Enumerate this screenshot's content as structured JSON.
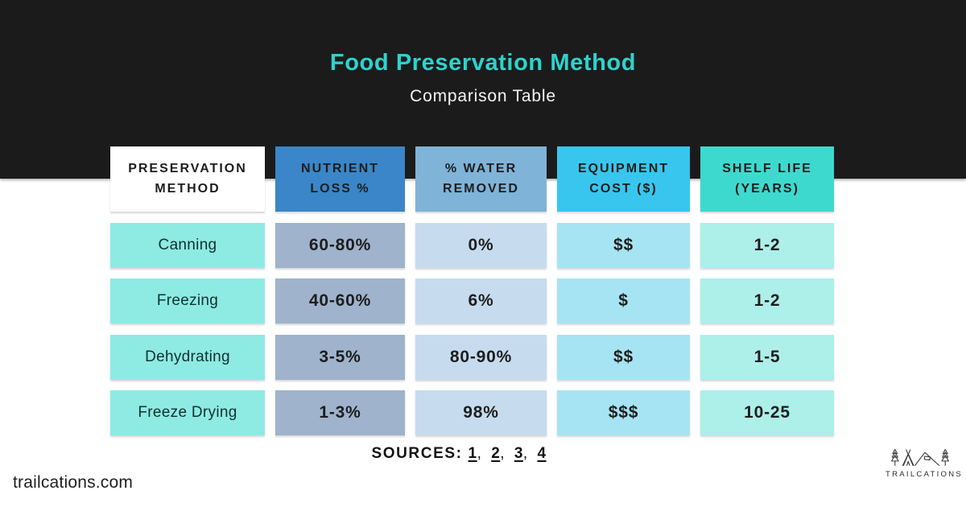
{
  "header": {
    "title": "Food Preservation Method",
    "subtitle": "Comparison Table"
  },
  "table": {
    "columns": [
      {
        "id": "method",
        "label": "PRESERVATION\nMETHOD"
      },
      {
        "id": "nutrient_loss",
        "label": "NUTRIENT\nLOSS %"
      },
      {
        "id": "water_removed",
        "label": "% WATER\nREMOVED"
      },
      {
        "id": "equipment_cost",
        "label": "EQUIPMENT\nCOST ($)"
      },
      {
        "id": "shelf_life",
        "label": "SHELF LIFE\n(YEARS)"
      }
    ],
    "rows": [
      {
        "method": "Canning",
        "nutrient_loss": "60-80%",
        "water_removed": "0%",
        "equipment_cost": "$$",
        "shelf_life": "1-2"
      },
      {
        "method": "Freezing",
        "nutrient_loss": "40-60%",
        "water_removed": "6%",
        "equipment_cost": "$",
        "shelf_life": "1-2"
      },
      {
        "method": "Dehydrating",
        "nutrient_loss": "3-5%",
        "water_removed": "80-90%",
        "equipment_cost": "$$",
        "shelf_life": "1-5"
      },
      {
        "method": "Freeze Drying",
        "nutrient_loss": "1-3%",
        "water_removed": "98%",
        "equipment_cost": "$$$",
        "shelf_life": "10-25"
      }
    ]
  },
  "sources": {
    "label": "SOURCES:",
    "links": [
      "1",
      "2",
      "3",
      "4"
    ],
    "separator": ", "
  },
  "footer": {
    "website": "trailcations.com",
    "brand": "TRAILCATIONS",
    "logo_icon": "tent-and-trees-icon"
  },
  "colors": {
    "band": "#1b1b1b",
    "title": "#2ed3ce",
    "header_method": "#ffffff",
    "header_nutrient": "#3a86c8",
    "header_water": "#7fb3d8",
    "header_cost": "#38c6ee",
    "header_shelf": "#3ed9ce",
    "cell_method": "#8debe4",
    "cell_nutrient": "#9fb3cc",
    "cell_water": "#c6dcee",
    "cell_cost": "#a6e4f3",
    "cell_shelf": "#adefe9"
  },
  "chart_data": {
    "type": "table",
    "title": "Food Preservation Method",
    "subtitle": "Comparison Table",
    "columns": [
      "Preservation Method",
      "Nutrient Loss %",
      "% Water Removed",
      "Equipment Cost ($)",
      "Shelf Life (Years)"
    ],
    "rows": [
      [
        "Canning",
        "60-80%",
        "0%",
        "$$",
        "1-2"
      ],
      [
        "Freezing",
        "40-60%",
        "6%",
        "$",
        "1-2"
      ],
      [
        "Dehydrating",
        "3-5%",
        "80-90%",
        "$$",
        "1-5"
      ],
      [
        "Freeze Drying",
        "1-3%",
        "98%",
        "$$$",
        "10-25"
      ]
    ]
  }
}
